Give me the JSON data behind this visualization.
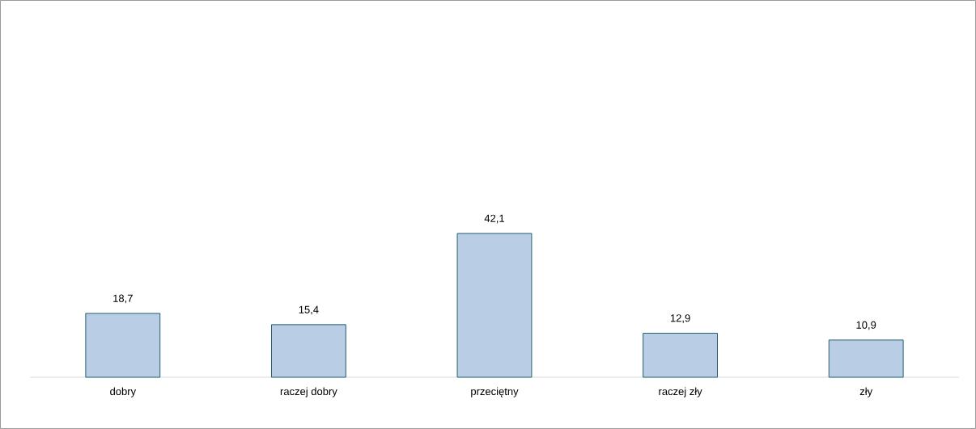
{
  "chart_data": {
    "type": "bar",
    "categories": [
      "dobry",
      "raczej dobry",
      "przeciętny",
      "raczej zły",
      "zły"
    ],
    "values": [
      18.7,
      15.4,
      42.1,
      12.9,
      10.9
    ],
    "value_labels": [
      "18,7",
      "15,4",
      "42,1",
      "12,9",
      "10,9"
    ],
    "color": "#b9cde5"
  }
}
